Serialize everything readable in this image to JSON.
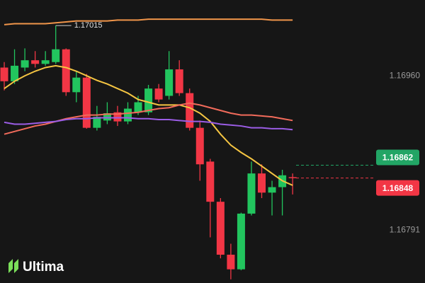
{
  "chart_data": {
    "type": "candlestick",
    "open": [
      1.16969,
      1.16954,
      1.16969,
      1.16977,
      1.16973,
      1.16975,
      1.16989,
      1.16942,
      1.16958,
      1.16903,
      1.16911,
      1.1692,
      1.1691,
      1.1692,
      1.1692,
      1.16946,
      1.16938,
      1.16967,
      1.16941,
      1.16903,
      1.16866,
      1.16822,
      1.16764,
      1.16748,
      1.16809,
      1.16853,
      1.16832,
      1.16838,
      1.16849
    ],
    "high": [
      1.16975,
      1.16989,
      1.1699,
      1.16987,
      1.16987,
      1.17015,
      1.1699,
      1.16965,
      1.16962,
      1.16927,
      1.16931,
      1.16927,
      1.16931,
      1.16938,
      1.1695,
      1.16951,
      1.16987,
      1.16977,
      1.16946,
      1.16911,
      1.16869,
      1.16826,
      1.16776,
      1.1681,
      1.16866,
      1.16863,
      1.16845,
      1.16857,
      1.16853
    ],
    "low": [
      1.16944,
      1.16951,
      1.16965,
      1.16969,
      1.16971,
      1.16973,
      1.16938,
      1.16931,
      1.16902,
      1.169,
      1.16907,
      1.16905,
      1.16907,
      1.16917,
      1.16917,
      1.16931,
      1.16934,
      1.16938,
      1.169,
      1.16845,
      1.16783,
      1.1676,
      1.16737,
      1.16747,
      1.16807,
      1.16826,
      1.16807,
      1.16807,
      1.1683
    ],
    "close": [
      1.16954,
      1.16971,
      1.16977,
      1.16973,
      1.16977,
      1.16989,
      1.16942,
      1.16958,
      1.16903,
      1.16915,
      1.16919,
      1.1691,
      1.16924,
      1.16931,
      1.16946,
      1.16934,
      1.16967,
      1.16941,
      1.16903,
      1.16863,
      1.16822,
      1.16764,
      1.16748,
      1.16809,
      1.16853,
      1.16832,
      1.16838,
      1.16851,
      1.16848
    ],
    "up_color": "#22c55e",
    "down_color": "#f23645",
    "lines": [
      {
        "color": "#f0954a",
        "values": [
          1.17016,
          1.17017,
          1.17017,
          1.17017,
          1.17017,
          1.17018,
          1.17019,
          1.1702,
          1.1702,
          1.1702,
          1.1702,
          1.17021,
          1.17021,
          1.17021,
          1.17022,
          1.17022,
          1.17022,
          1.17022,
          1.17022,
          1.17022,
          1.17022,
          1.17022,
          1.17022,
          1.17022,
          1.17022,
          1.17022,
          1.17021,
          1.17021,
          1.17021
        ]
      },
      {
        "color": "#f5c542",
        "values": [
          1.16946,
          1.16954,
          1.1696,
          1.16965,
          1.16969,
          1.16971,
          1.16969,
          1.16965,
          1.1696,
          1.16955,
          1.16951,
          1.16946,
          1.16941,
          1.16934,
          1.16931,
          1.16928,
          1.16928,
          1.16928,
          1.16925,
          1.16919,
          1.1691,
          1.16896,
          1.16884,
          1.16876,
          1.16869,
          1.16861,
          1.16853,
          1.16845,
          1.1684
        ]
      },
      {
        "color": "#f26b5b",
        "values": [
          1.16896,
          1.16899,
          1.16902,
          1.16905,
          1.16907,
          1.1691,
          1.16913,
          1.16915,
          1.16917,
          1.16917,
          1.16918,
          1.16918,
          1.16919,
          1.1692,
          1.16922,
          1.16924,
          1.16925,
          1.16928,
          1.1693,
          1.16928,
          1.16925,
          1.16922,
          1.16919,
          1.16917,
          1.16917,
          1.16916,
          1.16915,
          1.16913,
          1.16911
        ]
      },
      {
        "color": "#9b5de5",
        "values": [
          1.16909,
          1.16907,
          1.16907,
          1.16908,
          1.16909,
          1.1691,
          1.16912,
          1.16913,
          1.16913,
          1.16914,
          1.16914,
          1.16914,
          1.16914,
          1.16913,
          1.16913,
          1.16912,
          1.16912,
          1.16911,
          1.1691,
          1.1691,
          1.16909,
          1.16907,
          1.16906,
          1.16905,
          1.16903,
          1.16903,
          1.16902,
          1.16902,
          1.16901
        ]
      }
    ],
    "price_labels": [
      {
        "value": 1.16862,
        "label": "1.16862",
        "color": "#22a565"
      },
      {
        "value": 1.16848,
        "label": "1.16848",
        "color": "#f23645"
      }
    ],
    "ylim": [
      1.16733,
      1.17043
    ],
    "yticks": [
      {
        "value": 1.1696,
        "label": "1.16960"
      },
      1.16791
    ],
    "brand": "Ultima"
  }
}
